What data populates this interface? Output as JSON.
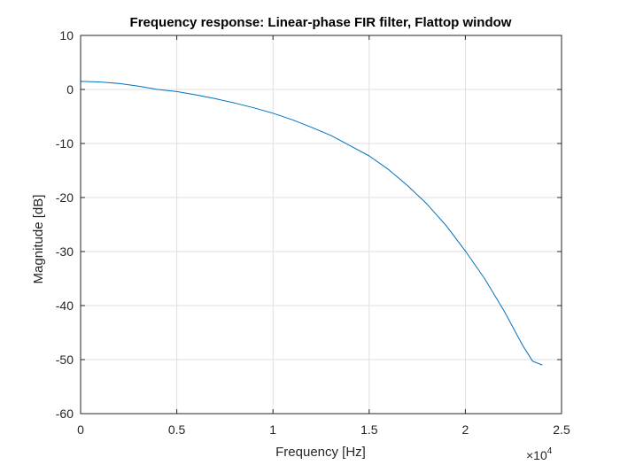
{
  "chart_data": {
    "type": "line",
    "title": "Frequency response: Linear-phase FIR filter, Flattop window",
    "xlabel": "Frequency [Hz]",
    "ylabel": "Magnitude [dB]",
    "x_exponent_label": "×10",
    "x_exponent": "4",
    "xlim": [
      0,
      25000
    ],
    "ylim": [
      -60,
      10
    ],
    "xticks": [
      0,
      5000,
      10000,
      15000,
      20000,
      25000
    ],
    "xtick_labels": [
      "0",
      "0.5",
      "1",
      "1.5",
      "2",
      "2.5"
    ],
    "yticks": [
      -60,
      -50,
      -40,
      -30,
      -20,
      -10,
      0,
      10
    ],
    "ytick_labels": [
      "-60",
      "-50",
      "-40",
      "-30",
      "-20",
      "-10",
      "0",
      "10"
    ],
    "grid": true,
    "series": [
      {
        "color": "#0072bd",
        "x": [
          0,
          1000,
          2000,
          3000,
          4000,
          5000,
          6000,
          7000,
          8000,
          9000,
          10000,
          11000,
          12000,
          13000,
          14000,
          15000,
          16000,
          17000,
          18000,
          19000,
          20000,
          21000,
          22000,
          23000,
          23500,
          24000
        ],
        "y": [
          1.5,
          1.4,
          1.1,
          0.6,
          0.0,
          -0.4,
          -1.0,
          -1.7,
          -2.5,
          -3.4,
          -4.4,
          -5.6,
          -7.0,
          -8.5,
          -10.4,
          -12.3,
          -14.8,
          -17.8,
          -21.2,
          -25.2,
          -29.9,
          -35.0,
          -40.9,
          -47.5,
          -50.3,
          -51.0
        ]
      }
    ]
  }
}
